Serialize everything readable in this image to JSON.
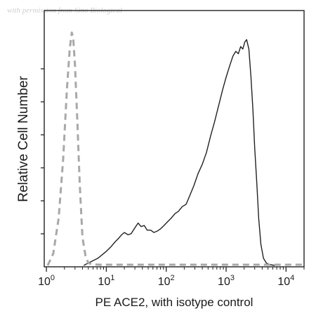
{
  "watermark": "with permission from Sino Biological",
  "chart_data": {
    "type": "line",
    "title": "",
    "xlabel": "PE ACE2, with isotype control",
    "ylabel": "Relative Cell Number",
    "x_scale": "log",
    "xlim": [
      0.92,
      20000
    ],
    "ylim": [
      0,
      1.0
    ],
    "x_ticks": [
      1,
      10,
      100,
      1000,
      10000
    ],
    "x_tick_labels": [
      {
        "base": "10",
        "exp": "0"
      },
      {
        "base": "10",
        "exp": "1"
      },
      {
        "base": "10",
        "exp": "2"
      },
      {
        "base": "10",
        "exp": "3"
      },
      {
        "base": "10",
        "exp": "4"
      }
    ],
    "grid": false,
    "legend": "none",
    "series": [
      {
        "style": "solid",
        "color": "#222222",
        "x": [
          4.2,
          5.0,
          6.0,
          7.2,
          8.5,
          10,
          12,
          14,
          16,
          18,
          20,
          23,
          26,
          30,
          34,
          38,
          43,
          48,
          55,
          62,
          70,
          80,
          92,
          105,
          120,
          140,
          160,
          185,
          215,
          250,
          290,
          340,
          400,
          470,
          550,
          640,
          750,
          880,
          1000,
          1150,
          1300,
          1450,
          1600,
          1750,
          1900,
          2050,
          2200,
          2400,
          2600,
          2800,
          3000,
          3250,
          3500,
          3800,
          4200,
          4700,
          5400,
          6500
        ],
        "y": [
          0.0,
          0.01,
          0.02,
          0.03,
          0.045,
          0.06,
          0.08,
          0.1,
          0.115,
          0.13,
          0.14,
          0.13,
          0.135,
          0.16,
          0.18,
          0.165,
          0.17,
          0.15,
          0.15,
          0.14,
          0.145,
          0.155,
          0.17,
          0.185,
          0.2,
          0.22,
          0.23,
          0.25,
          0.26,
          0.3,
          0.34,
          0.39,
          0.43,
          0.48,
          0.55,
          0.61,
          0.68,
          0.75,
          0.8,
          0.85,
          0.89,
          0.91,
          0.9,
          0.93,
          0.92,
          0.95,
          0.96,
          0.92,
          0.8,
          0.66,
          0.5,
          0.35,
          0.2,
          0.09,
          0.03,
          0.01,
          0.003,
          0.0
        ]
      },
      {
        "style": "dashed",
        "color": "#a8a8a8",
        "x": [
          1.05,
          1.3,
          1.6,
          1.9,
          2.2,
          2.45,
          2.65,
          2.8,
          3.0,
          3.3,
          3.6,
          4.0,
          4.5,
          5.0,
          6.0,
          8.0,
          15,
          40,
          120,
          400,
          2000,
          10000,
          20000
        ],
        "y": [
          0.0,
          0.05,
          0.2,
          0.45,
          0.75,
          0.92,
          0.99,
          0.97,
          0.85,
          0.6,
          0.35,
          0.12,
          0.04,
          0.01,
          0.004,
          0.003,
          0.003,
          0.003,
          0.003,
          0.003,
          0.003,
          0.003,
          0.003
        ]
      }
    ]
  }
}
